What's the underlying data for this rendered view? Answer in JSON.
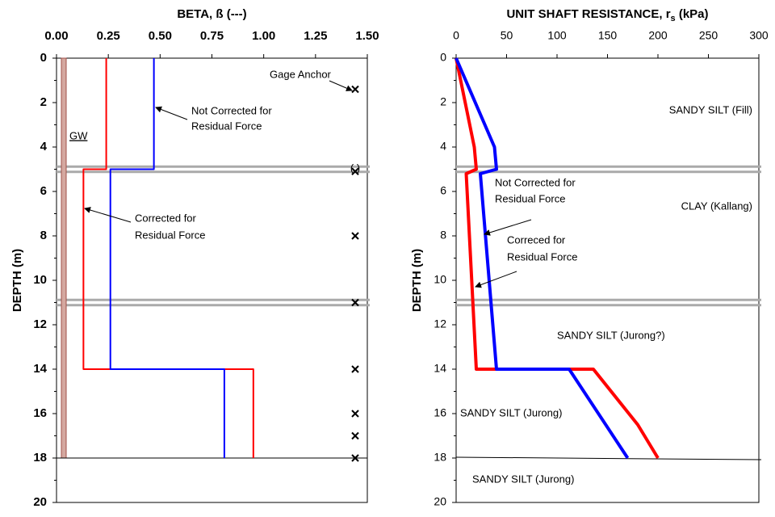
{
  "chart_data": [
    {
      "type": "line",
      "xlabel": "BETA, ß  (---)",
      "ylabel": "DEPTH (m)",
      "xlim": [
        0,
        1.5
      ],
      "xticks": [
        {
          "value": 0,
          "label": "0.00"
        },
        {
          "value": 0.25,
          "label": "0.25"
        },
        {
          "value": 0.5,
          "label": "0.50"
        },
        {
          "value": 0.75,
          "label": "0.75"
        },
        {
          "value": 1,
          "label": "1.00"
        },
        {
          "value": 1.25,
          "label": "1.25"
        },
        {
          "value": 1.5,
          "label": "1.50"
        }
      ],
      "ylim": [
        0,
        20
      ],
      "yticks": [
        0,
        2,
        4,
        6,
        8,
        10,
        12,
        14,
        16,
        18,
        20
      ],
      "y_reversed": true,
      "series": [
        {
          "color": "#ff0000",
          "x": [
            0.24,
            0.24,
            0.13,
            0.13,
            0.95,
            0.95
          ],
          "values": [
            0,
            5,
            5,
            14,
            14,
            18
          ]
        },
        {
          "color": "#0000ff",
          "x": [
            0.47,
            0.47,
            0.26,
            0.26,
            0.81,
            0.81
          ],
          "values": [
            0,
            5,
            5,
            14,
            14,
            18
          ]
        }
      ],
      "boundaries": [
        5,
        11
      ],
      "toe_depth": 18,
      "gage_depths": [
        1.4,
        5.1,
        8,
        11,
        14,
        16,
        17,
        18
      ],
      "annotations": [
        "Gage Anchor",
        "Not Corrected for",
        "Residual Force",
        "GW",
        "Corrected for",
        "Residual Force",
        "(   )"
      ]
    },
    {
      "type": "line",
      "xlabel": {
        "main": "UNIT SHAFT RESISTANCE, r",
        "sub": "s",
        "unit": " (kPa)"
      },
      "ylabel": "DEPTH (m)",
      "xlim": [
        0,
        300
      ],
      "xticks": [
        0,
        50,
        100,
        150,
        200,
        250,
        300
      ],
      "ylim": [
        0,
        20
      ],
      "yticks": [
        0,
        2,
        4,
        6,
        8,
        10,
        12,
        14,
        16,
        18,
        20
      ],
      "y_reversed": true,
      "series": [
        {
          "color": "#ff0000",
          "x": [
            0,
            18,
            20,
            10,
            20,
            136,
            180,
            200
          ],
          "values": [
            0,
            4,
            5,
            5.2,
            14,
            14,
            16.5,
            18
          ]
        },
        {
          "color": "#0000ff",
          "x": [
            0,
            38,
            40,
            24,
            40,
            112,
            170
          ],
          "values": [
            0,
            4,
            5,
            5.2,
            14,
            14,
            18
          ]
        }
      ],
      "boundaries": [
        5,
        11
      ],
      "toe_depth": 18,
      "annotations": [
        "SANDY SILT (Fill)",
        "Not Corrected for",
        "Residual Force",
        "CLAY (Kallang)",
        "Correced for",
        "Residual Force",
        "SANDY SILT (Jurong?)",
        "SANDY SILT (Jurong)",
        "SANDY SILT (Jurong)"
      ]
    }
  ]
}
